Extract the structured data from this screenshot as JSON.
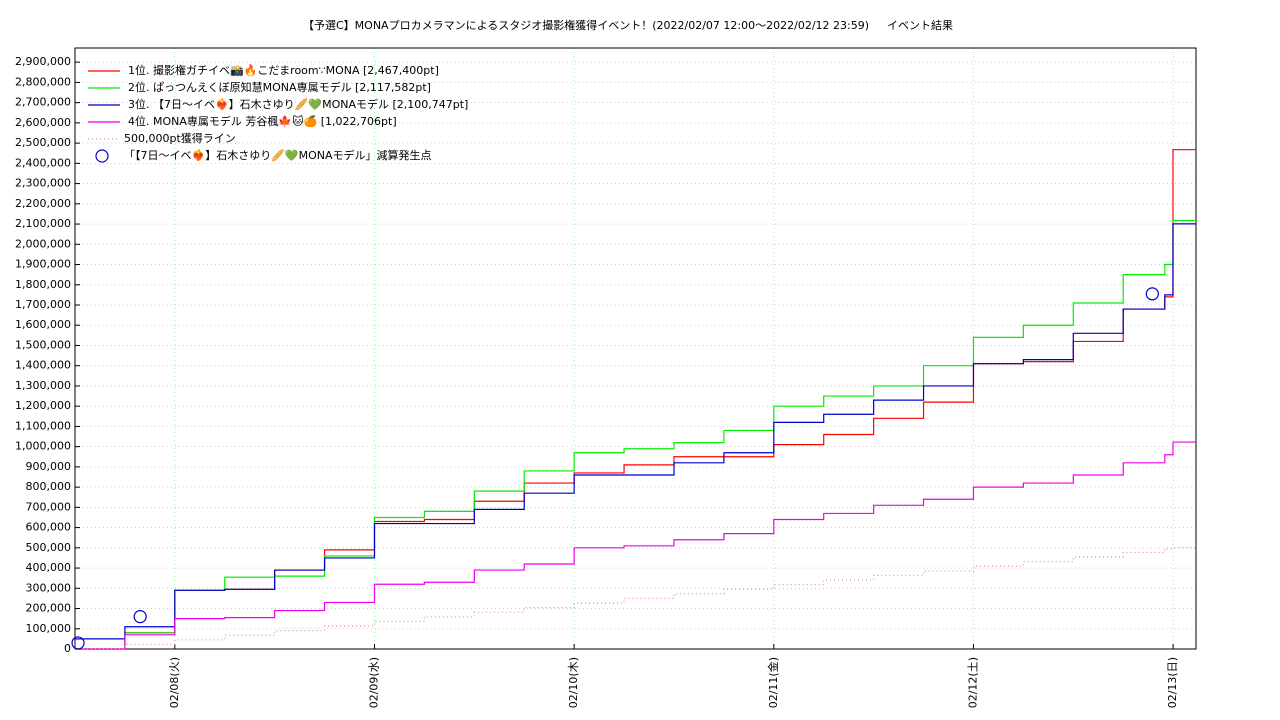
{
  "chart_data": {
    "type": "line",
    "step": "post",
    "title": "【予選C】MONAプロカメラマンによるスタジオ撮影権獲得イベント！(2022/02/07 12:00〜2022/02/12 23:59)",
    "subtitle": "イベント結果",
    "x": [
      "2022-02-07T12:00",
      "2022-02-07T18:00",
      "2022-02-08T00:00",
      "2022-02-08T06:00",
      "2022-02-08T12:00",
      "2022-02-08T18:00",
      "2022-02-09T00:00",
      "2022-02-09T06:00",
      "2022-02-09T12:00",
      "2022-02-09T18:00",
      "2022-02-10T00:00",
      "2022-02-10T06:00",
      "2022-02-10T12:00",
      "2022-02-10T18:00",
      "2022-02-11T00:00",
      "2022-02-11T06:00",
      "2022-02-11T12:00",
      "2022-02-11T18:00",
      "2022-02-12T00:00",
      "2022-02-12T06:00",
      "2022-02-12T12:00",
      "2022-02-12T18:00",
      "2022-02-12T23:00",
      "2022-02-12T23:59",
      "2022-02-13T02:45"
    ],
    "series": [
      {
        "name": "1位. 撮影権ガチイベ📸🔥こだまroom∵MONA [2,467,400pt]",
        "color": "#ff0000",
        "dash": "solid",
        "values": [
          0,
          80000,
          290000,
          295000,
          390000,
          490000,
          630000,
          640000,
          730000,
          820000,
          870000,
          910000,
          950000,
          950000,
          1010000,
          1060000,
          1140000,
          1220000,
          1410000,
          1420000,
          1520000,
          1680000,
          1740000,
          2467400,
          2467400
        ]
      },
      {
        "name": "2位. ぱっつんえくぼ原知慧MONA専属モデル [2,117,582pt]",
        "color": "#00ee00",
        "dash": "solid",
        "values": [
          0,
          80000,
          290000,
          355000,
          360000,
          460000,
          650000,
          680000,
          780000,
          880000,
          970000,
          990000,
          1020000,
          1080000,
          1200000,
          1250000,
          1300000,
          1400000,
          1540000,
          1600000,
          1710000,
          1850000,
          1900000,
          2117582,
          2117582
        ]
      },
      {
        "name": "3位. 【7日〜イベ❤️‍🔥】石木さゆり🥖💚MONAモデル [2,100,747pt]",
        "color": "#0000cc",
        "dash": "solid",
        "values": [
          50000,
          110000,
          290000,
          295000,
          390000,
          450000,
          620000,
          620000,
          690000,
          770000,
          860000,
          860000,
          920000,
          970000,
          1120000,
          1160000,
          1230000,
          1300000,
          1410000,
          1430000,
          1560000,
          1680000,
          1750000,
          2100747,
          2100747
        ]
      },
      {
        "name": "4位. MONA専属モデル 芳谷楓🍁🐱🍊 [1,022,706pt]",
        "color": "#ee00ee",
        "dash": "solid",
        "values": [
          0,
          70000,
          150000,
          155000,
          190000,
          230000,
          320000,
          330000,
          390000,
          420000,
          500000,
          510000,
          540000,
          570000,
          640000,
          670000,
          710000,
          740000,
          800000,
          820000,
          860000,
          920000,
          960000,
          1022706,
          1022706
        ]
      },
      {
        "name": "500,000pt獲得ライン",
        "color": "#e09090",
        "dash": "dotted",
        "values": [
          0,
          22700,
          45500,
          68200,
          90900,
          113600,
          136400,
          159100,
          181800,
          204500,
          227300,
          250000,
          272700,
          295500,
          318200,
          340900,
          363600,
          386400,
          409100,
          431800,
          454500,
          477300,
          496200,
          500000,
          510000
        ]
      }
    ],
    "markers": {
      "name": "「【7日〜イベ❤️‍🔥】石木さゆり🥖💚MONAモデル」減算発生点",
      "color": "#0000cc",
      "x": [
        "2022-02-07T12:22",
        "2022-02-07T19:50",
        "2022-02-12T21:30"
      ],
      "values": [
        30000,
        160000,
        1755000
      ]
    },
    "xlim": [
      "2022-02-07T12:00",
      "2022-02-13T02:45"
    ],
    "xticks": [
      {
        "value": "2022-02-08T00:00",
        "label": "02/08(火)"
      },
      {
        "value": "2022-02-09T00:00",
        "label": "02/09(水)"
      },
      {
        "value": "2022-02-10T00:00",
        "label": "02/10(木)"
      },
      {
        "value": "2022-02-11T00:00",
        "label": "02/11(金)"
      },
      {
        "value": "2022-02-12T00:00",
        "label": "02/12(土)"
      },
      {
        "value": "2022-02-13T00:00",
        "label": "02/13(日)"
      }
    ],
    "ylim": [
      0,
      2970000
    ],
    "yticks": [
      0,
      {
        "value": 100000,
        "label": "100,000"
      },
      {
        "value": 200000,
        "label": "200,000"
      },
      {
        "value": 300000,
        "label": "300,000"
      },
      {
        "value": 400000,
        "label": "400,000"
      },
      {
        "value": 500000,
        "label": "500,000"
      },
      {
        "value": 600000,
        "label": "600,000"
      },
      {
        "value": 700000,
        "label": "700,000"
      },
      {
        "value": 800000,
        "label": "800,000"
      },
      {
        "value": 900000,
        "label": "900,000"
      },
      {
        "value": 1000000,
        "label": "1,000,000"
      },
      {
        "value": 1100000,
        "label": "1,100,000"
      },
      {
        "value": 1200000,
        "label": "1,200,000"
      },
      {
        "value": 1300000,
        "label": "1,300,000"
      },
      {
        "value": 1400000,
        "label": "1,400,000"
      },
      {
        "value": 1500000,
        "label": "1,500,000"
      },
      {
        "value": 1600000,
        "label": "1,600,000"
      },
      {
        "value": 1700000,
        "label": "1,700,000"
      },
      {
        "value": 1800000,
        "label": "1,800,000"
      },
      {
        "value": 1900000,
        "label": "1,900,000"
      },
      {
        "value": 2000000,
        "label": "2,000,000"
      },
      {
        "value": 2100000,
        "label": "2,100,000"
      },
      {
        "value": 2200000,
        "label": "2,200,000"
      },
      {
        "value": 2300000,
        "label": "2,300,000"
      },
      {
        "value": 2400000,
        "label": "2,400,000"
      },
      {
        "value": 2500000,
        "label": "2,500,000"
      },
      {
        "value": 2600000,
        "label": "2,600,000"
      },
      {
        "value": 2700000,
        "label": "2,700,000"
      },
      {
        "value": 2800000,
        "label": "2,800,000"
      },
      {
        "value": 2900000,
        "label": "2,900,000"
      }
    ],
    "grid": true,
    "legend": "upper left"
  }
}
